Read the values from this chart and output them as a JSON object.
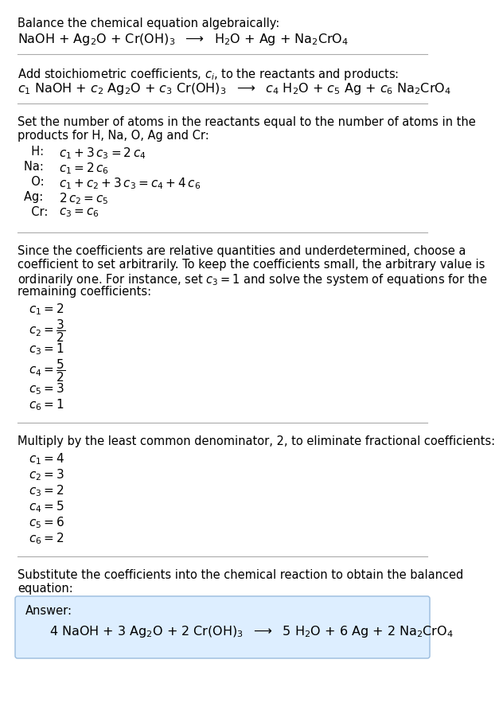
{
  "bg_color": "#ffffff",
  "text_color": "#000000",
  "answer_box_facecolor": "#ddeeff",
  "answer_box_edgecolor": "#99bbdd",
  "title": "Balance the chemical equation algebraically:",
  "eq1": "NaOH + Ag$_2$O + Cr(OH)$_3$  $\\longrightarrow$  H$_2$O + Ag + Na$_2$CrO$_4$",
  "sec2_text": "Add stoichiometric coefficients, $c_i$, to the reactants and products:",
  "eq2": "$c_1$ NaOH + $c_2$ Ag$_2$O + $c_3$ Cr(OH)$_3$  $\\longrightarrow$  $c_4$ H$_2$O + $c_5$ Ag + $c_6$ Na$_2$CrO$_4$",
  "sec3_text1": "Set the number of atoms in the reactants equal to the number of atoms in the",
  "sec3_text2": "products for H, Na, O, Ag and Cr:",
  "atom_rows": [
    [
      "  H: ",
      "$c_1 + 3\\,c_3 = 2\\,c_4$"
    ],
    [
      "Na: ",
      "$c_1 = 2\\,c_6$"
    ],
    [
      "  O: ",
      "$c_1 + c_2 + 3\\,c_3 = c_4 + 4\\,c_6$"
    ],
    [
      "Ag: ",
      "$2\\,c_2 = c_5$"
    ],
    [
      "  Cr: ",
      "$c_3 = c_6$"
    ]
  ],
  "sec4_text1": "Since the coefficients are relative quantities and underdetermined, choose a",
  "sec4_text2": "coefficient to set arbitrarily. To keep the coefficients small, the arbitrary value is",
  "sec4_text3": "ordinarily one. For instance, set $c_3 = 1$ and solve the system of equations for the",
  "sec4_text4": "remaining coefficients:",
  "coeff1": [
    [
      "$c_1 = 2$",
      false
    ],
    [
      "$c_2 = \\dfrac{3}{2}$",
      true
    ],
    [
      "$c_3 = 1$",
      false
    ],
    [
      "$c_4 = \\dfrac{5}{2}$",
      true
    ],
    [
      "$c_5 = 3$",
      false
    ],
    [
      "$c_6 = 1$",
      false
    ]
  ],
  "sec5_text": "Multiply by the least common denominator, 2, to eliminate fractional coefficients:",
  "coeff2": [
    "$c_1 = 4$",
    "$c_2 = 3$",
    "$c_3 = 2$",
    "$c_4 = 5$",
    "$c_5 = 6$",
    "$c_6 = 2$"
  ],
  "sec6_text1": "Substitute the coefficients into the chemical reaction to obtain the balanced",
  "sec6_text2": "equation:",
  "answer_label": "Answer:",
  "answer_eq": "4 NaOH + 3 Ag$_2$O + 2 Cr(OH)$_3$  $\\longrightarrow$  5 H$_2$O + 6 Ag + 2 Na$_2$CrO$_4$"
}
